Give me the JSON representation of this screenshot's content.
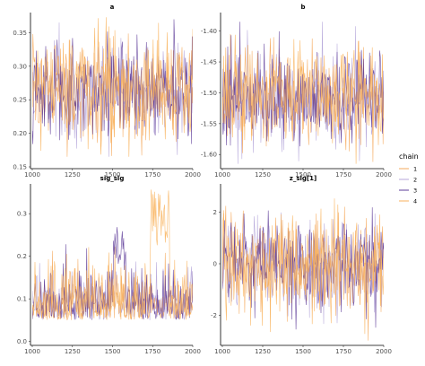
{
  "legend": {
    "title": "chain",
    "entries": [
      {
        "label": "1",
        "color": "#F5A95B"
      },
      {
        "label": "2",
        "color": "#B4A5D9"
      },
      {
        "label": "3",
        "color": "#5E3C99"
      },
      {
        "label": "4",
        "color": "#F8B25C"
      }
    ]
  },
  "chart_data": [
    {
      "type": "line",
      "title": "a",
      "x_range": [
        1000,
        2000
      ],
      "x_ticks": [
        1000,
        1250,
        1500,
        1750,
        2000
      ],
      "y_range": [
        0.15,
        0.38
      ],
      "y_ticks": [
        0.15,
        0.2,
        0.25,
        0.3,
        0.35
      ],
      "y_tick_labels": [
        "0.15",
        "0.20",
        "0.25",
        "0.30",
        "0.35"
      ],
      "trace": {
        "center": 0.265,
        "spread": 0.038,
        "min": 0.165,
        "max": 0.385
      },
      "grid": false
    },
    {
      "type": "line",
      "title": "b",
      "x_range": [
        1000,
        2000
      ],
      "x_ticks": [
        1000,
        1250,
        1500,
        1750,
        2000
      ],
      "y_range": [
        -1.62,
        -1.37
      ],
      "y_ticks": [
        -1.6,
        -1.55,
        -1.5,
        -1.45,
        -1.4
      ],
      "y_tick_labels": [
        "-1.60",
        "-1.55",
        "-1.50",
        "-1.45",
        "-1.40"
      ],
      "trace": {
        "center": -1.505,
        "spread": 0.04,
        "min": -1.615,
        "max": -1.385
      },
      "grid": false
    },
    {
      "type": "line",
      "title": "sig_sig",
      "x_range": [
        1000,
        2000
      ],
      "x_ticks": [
        1000,
        1250,
        1500,
        1750,
        2000
      ],
      "y_range": [
        -0.005,
        0.37
      ],
      "y_ticks": [
        0.0,
        0.1,
        0.2,
        0.3
      ],
      "y_tick_labels": [
        "0.0",
        "0.1",
        "0.2",
        "0.3"
      ],
      "trace": {
        "center": 0.08,
        "spread": 0.065,
        "min": 0.002,
        "max": 0.36
      },
      "grid": false
    },
    {
      "type": "line",
      "title": "z_sig[1]",
      "x_range": [
        1000,
        2000
      ],
      "x_ticks": [
        1000,
        1250,
        1500,
        1750,
        2000
      ],
      "y_range": [
        -3.1,
        3.1
      ],
      "y_ticks": [
        -2,
        0,
        2
      ],
      "y_tick_labels": [
        "-2",
        "0",
        "2"
      ],
      "trace": {
        "center": 0.0,
        "spread": 0.95,
        "min": -3.0,
        "max": 3.0
      },
      "grid": false
    }
  ]
}
